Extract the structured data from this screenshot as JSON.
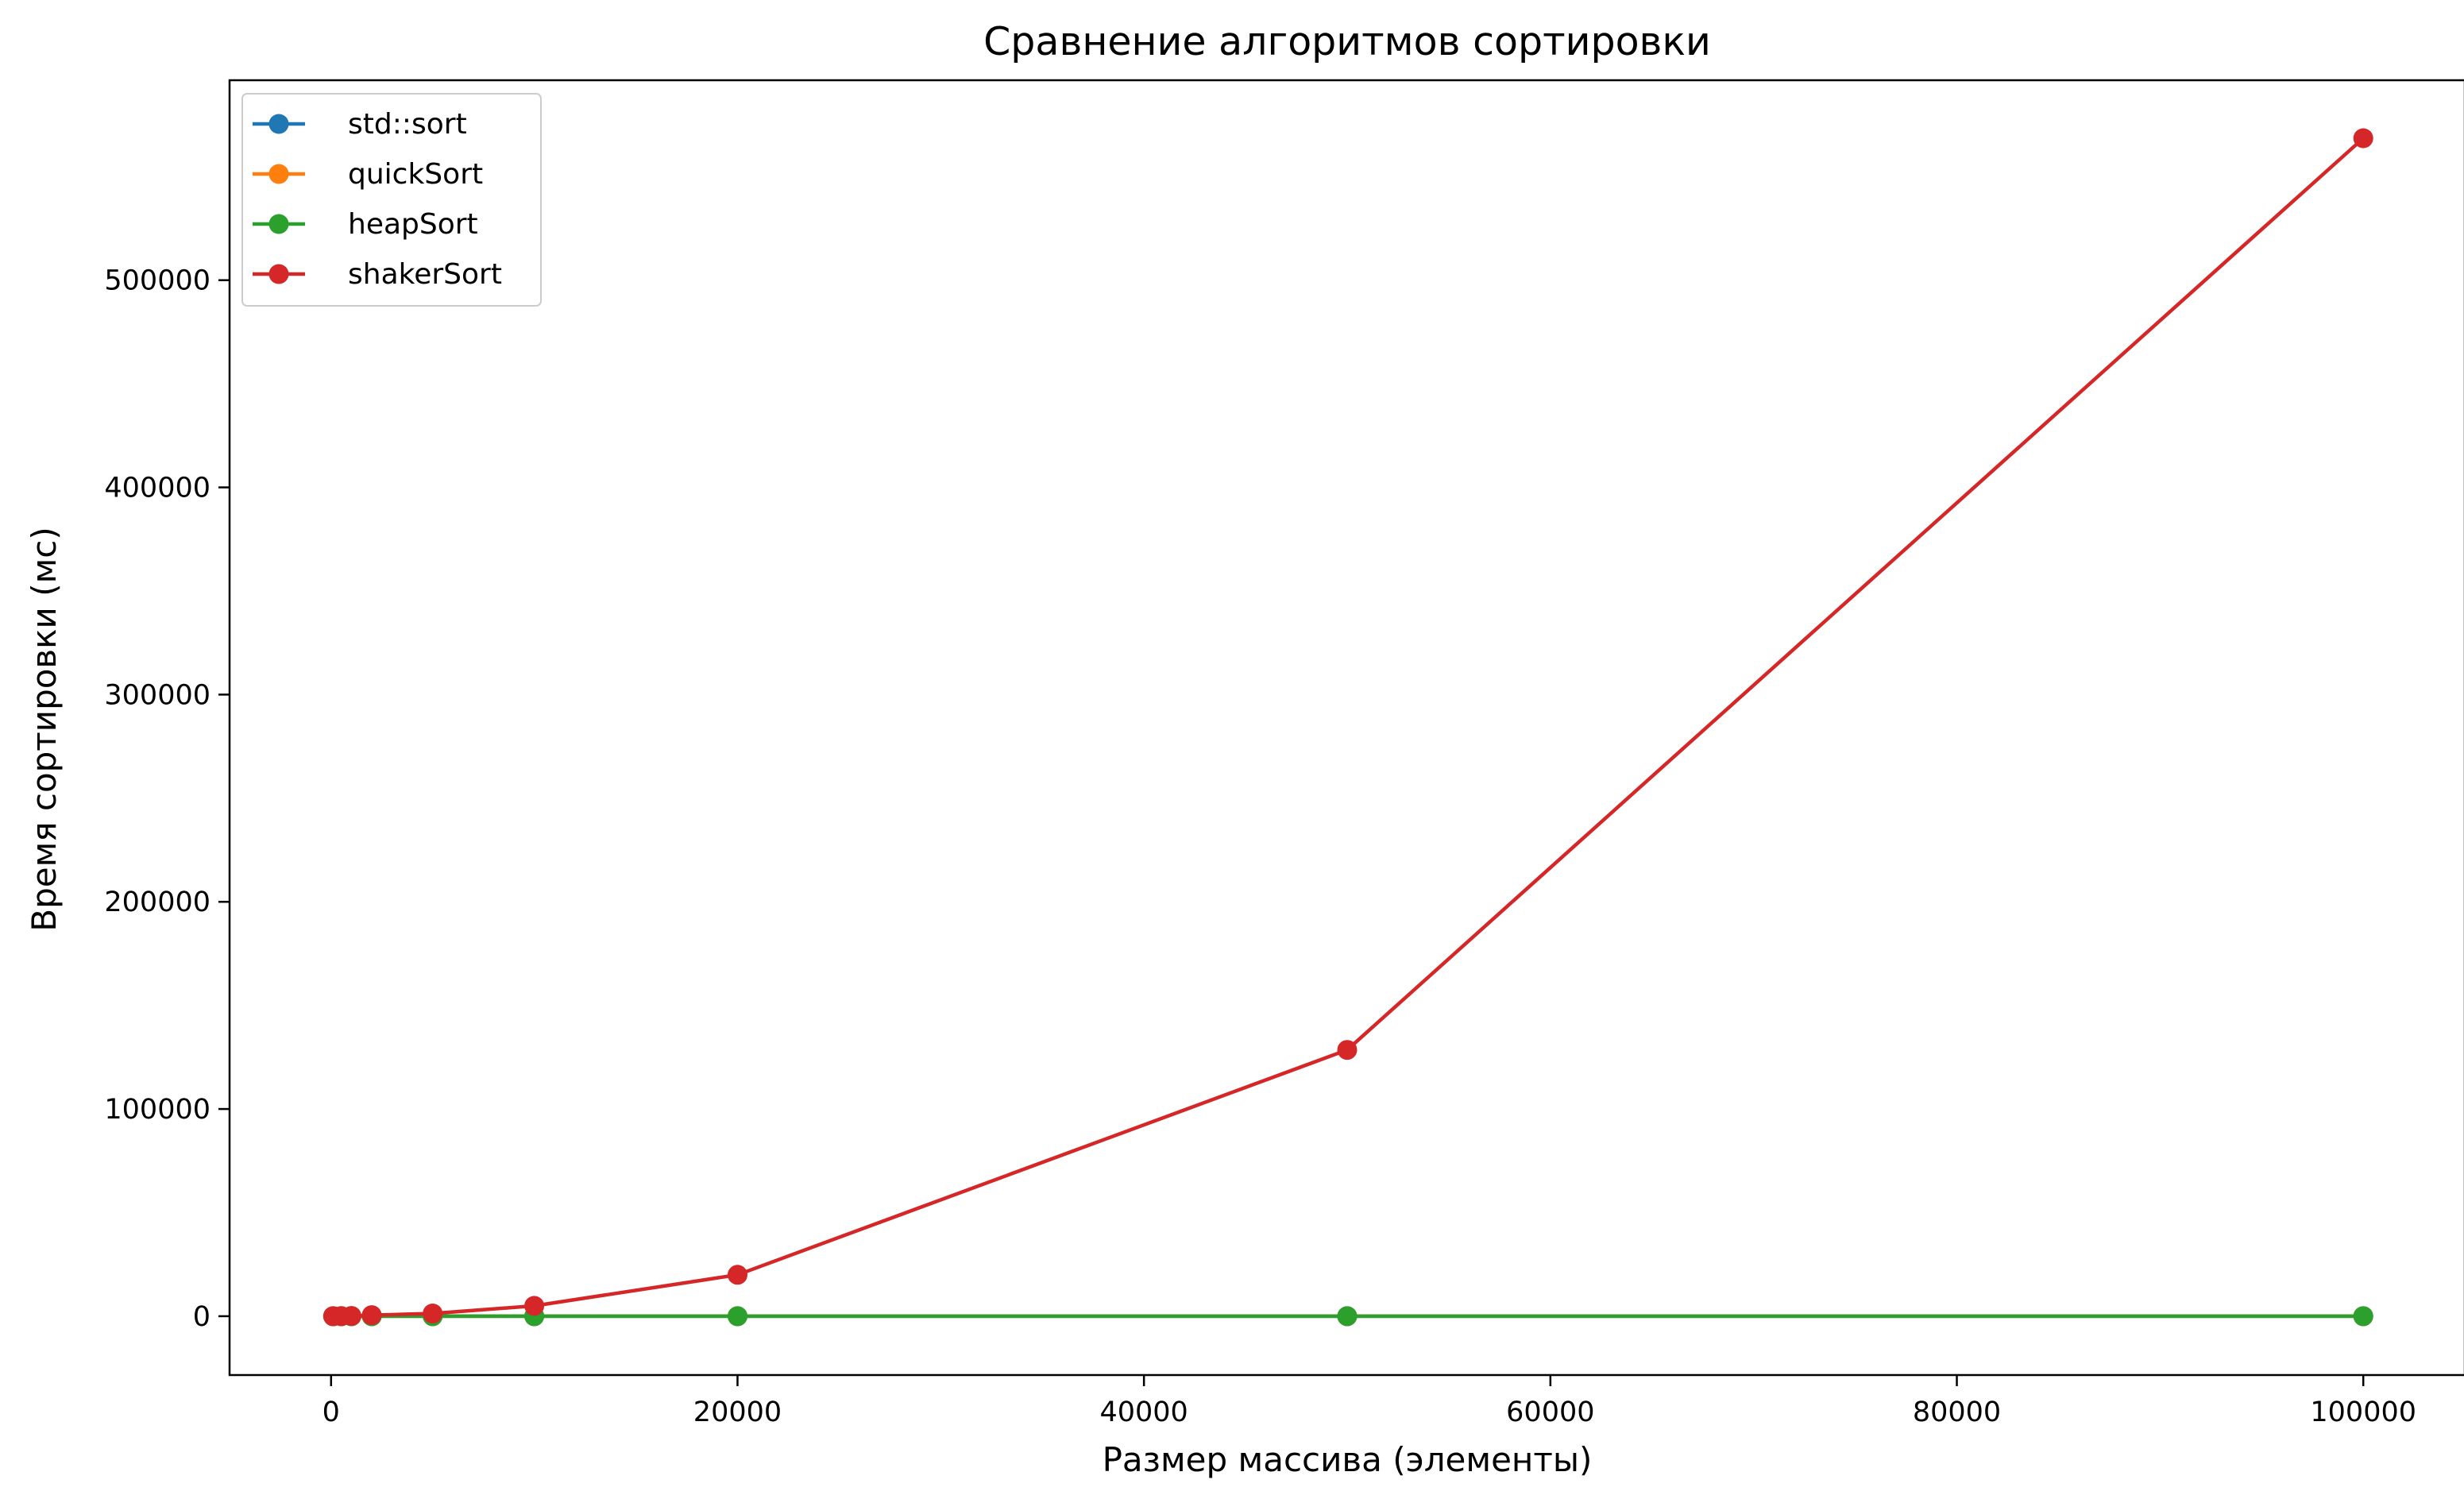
{
  "chart_data": {
    "type": "line",
    "title": "Сравнение алгоритмов сортировки",
    "xlabel": "Размер массива (элементы)",
    "ylabel": "Время сортировки (мс)",
    "x": [
      100,
      500,
      1000,
      2000,
      5000,
      10000,
      20000,
      50000,
      100000
    ],
    "xlim": [
      -4995,
      104995
    ],
    "ylim": [
      -28400,
      596500
    ],
    "xticks": [
      0,
      20000,
      40000,
      60000,
      80000,
      100000
    ],
    "yticks": [
      0,
      100000,
      200000,
      300000,
      400000,
      500000
    ],
    "xtick_labels": [
      "0",
      "20000",
      "40000",
      "60000",
      "80000",
      "100000"
    ],
    "ytick_labels": [
      "0",
      "100000",
      "200000",
      "300000",
      "400000",
      "500000"
    ],
    "grid": false,
    "legend_position": "top-left",
    "series": [
      {
        "name": "std::sort",
        "color": "#1f77b4",
        "values": [
          0,
          0,
          0,
          0,
          0,
          1,
          1,
          4,
          8
        ]
      },
      {
        "name": "quickSort",
        "color": "#ff7f0e",
        "values": [
          0,
          0,
          0,
          0,
          0,
          1,
          2,
          5,
          10
        ]
      },
      {
        "name": "heapSort",
        "color": "#2ca02c",
        "values": [
          0,
          0,
          0,
          0,
          1,
          2,
          4,
          12,
          25
        ]
      },
      {
        "name": "shakerSort",
        "color": "#d62728",
        "values": [
          1,
          30,
          120,
          500,
          1300,
          5000,
          20000,
          128500,
          568500
        ]
      }
    ]
  }
}
